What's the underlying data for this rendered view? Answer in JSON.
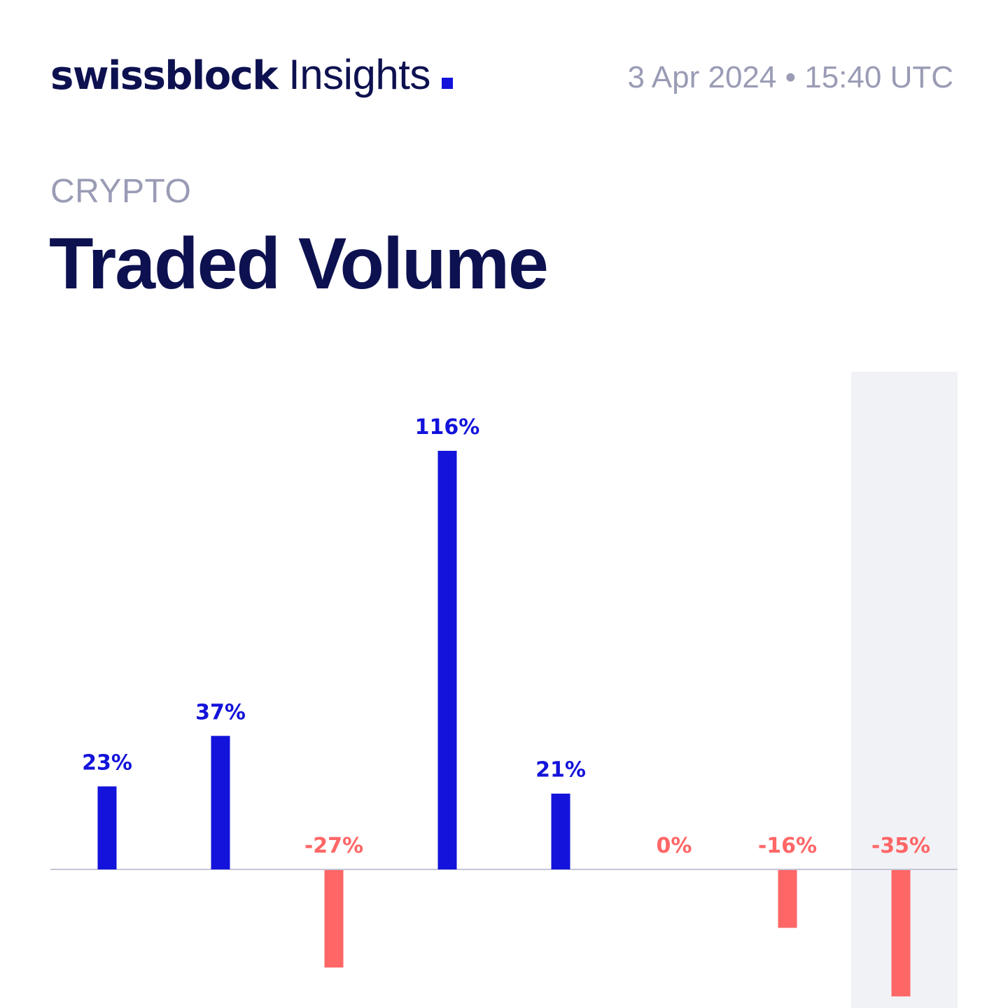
{
  "header": {
    "brand_name": "swissblock",
    "brand_sub": "Insights",
    "timestamp": "3 Apr 2024 • 15:40 UTC"
  },
  "category": "CRYPTO",
  "title": "Traded Volume",
  "colors": {
    "positive": "#1313db",
    "negative": "#ff6666",
    "baseline": "#c4c6d6",
    "highlight_band": "#f1f2f6",
    "navy": "#0d1150",
    "muted": "#9a9cb5"
  },
  "chart_data": {
    "type": "bar",
    "title": "Traded Volume",
    "categories": [],
    "values": [
      23,
      37,
      -27,
      116,
      21,
      0,
      -16,
      -35
    ],
    "labels": [
      "23%",
      "37%",
      "-27%",
      "116%",
      "21%",
      "0%",
      "-16%",
      "-35%"
    ],
    "unit": "%",
    "highlighted_index": 7,
    "xlabel": "",
    "ylabel": "",
    "grid": false
  }
}
